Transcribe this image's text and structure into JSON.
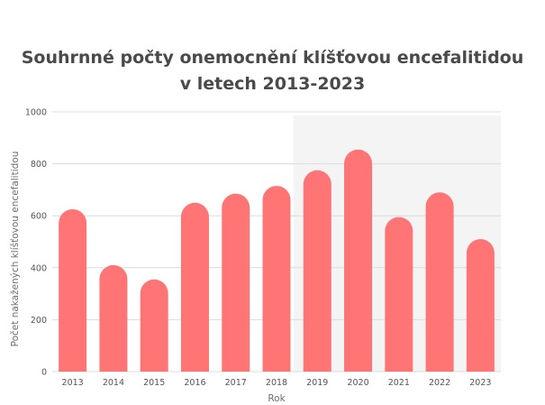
{
  "chart_data": {
    "type": "bar",
    "title_lines": [
      "Souhrnné počty onemocnění klíšťovou encefalitidou",
      "v letech 2013-2023"
    ],
    "xlabel": "Rok",
    "ylabel": "Počet nakažených klíšťovou encefalitidou",
    "categories": [
      "2013",
      "2014",
      "2015",
      "2016",
      "2017",
      "2018",
      "2019",
      "2020",
      "2021",
      "2022",
      "2023"
    ],
    "values": [
      625,
      410,
      355,
      650,
      685,
      715,
      775,
      855,
      595,
      690,
      510
    ],
    "ylim": [
      0,
      1000
    ],
    "yticks": [
      0,
      200,
      400,
      600,
      800,
      1000
    ],
    "grid": true,
    "highlighted_region": "2019–2023",
    "colors": {
      "bar": "#ff7474",
      "highlight_background": "#f4f4f5",
      "grid": "#dcdcdc",
      "title": "#4a4a4a"
    }
  }
}
